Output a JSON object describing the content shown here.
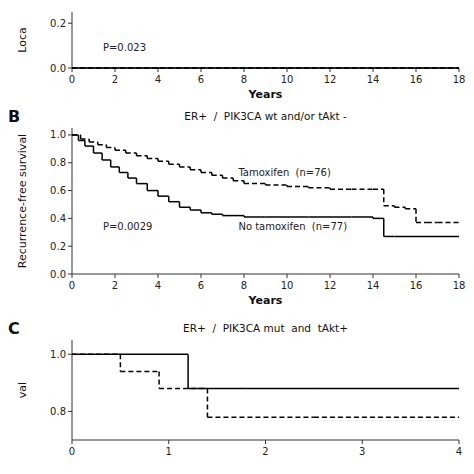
{
  "chart_data": [
    {
      "type": "line",
      "x": [
        0,
        18
      ],
      "series": [
        {
          "color": "#000000",
          "line_style": "solid",
          "values": [
            0.0,
            0.0
          ]
        },
        {
          "color": "#000000",
          "line_style": "dashed",
          "values": [
            0.0,
            0.0
          ]
        }
      ],
      "xlabel": "Years",
      "ylabel": "Loca",
      "annotations": [
        "P=0.023"
      ],
      "xlim": [
        0,
        18
      ],
      "ylim": [
        0.0,
        0.25
      ],
      "xticks": [
        0,
        2,
        4,
        6,
        8,
        10,
        12,
        14,
        16,
        18
      ],
      "yticks": [
        {
          "value": 0.0,
          "label": "0.0"
        },
        0.2
      ]
    },
    {
      "type": "step",
      "title": "ER+  /  PIK3CA wt and/or tAkt -",
      "panel_label": "B",
      "xlabel": "Years",
      "ylabel": "Recurrence-free survival",
      "annotations": [
        "P=0.0029"
      ],
      "series": [
        {
          "name": "Tamoxifen  (n=76)",
          "color": "#000000",
          "line_style": "dashed",
          "x": [
            0,
            0.4,
            0.8,
            1.2,
            1.6,
            2.0,
            2.5,
            3.0,
            3.5,
            4.0,
            4.5,
            5.0,
            5.5,
            6.0,
            6.5,
            7.0,
            7.5,
            8.0,
            9.0,
            10.0,
            11.0,
            12.0,
            13.0,
            14.0,
            14.5,
            15.0,
            15.5,
            16.0,
            16.5,
            17.0,
            18.0
          ],
          "values": [
            1.0,
            0.97,
            0.95,
            0.93,
            0.91,
            0.89,
            0.87,
            0.85,
            0.83,
            0.81,
            0.79,
            0.77,
            0.75,
            0.73,
            0.71,
            0.69,
            0.67,
            0.65,
            0.64,
            0.63,
            0.62,
            0.61,
            0.61,
            0.61,
            0.49,
            0.48,
            0.47,
            0.37,
            0.37,
            0.37,
            0.37
          ]
        },
        {
          "name": "No tamoxifen  (n=77)",
          "color": "#000000",
          "line_style": "solid",
          "x": [
            0,
            0.3,
            0.6,
            1.0,
            1.4,
            1.8,
            2.2,
            2.6,
            3.0,
            3.5,
            4.0,
            4.5,
            5.0,
            5.5,
            6.0,
            6.5,
            7.0,
            8.0,
            9.0,
            10.0,
            11.0,
            12.0,
            13.0,
            14.0,
            14.5,
            15.0,
            18.0
          ],
          "values": [
            1.0,
            0.96,
            0.92,
            0.87,
            0.82,
            0.77,
            0.73,
            0.69,
            0.65,
            0.6,
            0.56,
            0.52,
            0.48,
            0.46,
            0.44,
            0.43,
            0.42,
            0.41,
            0.41,
            0.41,
            0.41,
            0.41,
            0.41,
            0.4,
            0.27,
            0.27,
            0.27
          ]
        }
      ],
      "xlim": [
        0,
        18
      ],
      "ylim": [
        0.0,
        1.05
      ],
      "xticks": [
        0,
        2,
        4,
        6,
        8,
        10,
        12,
        14,
        16,
        18
      ],
      "yticks": [
        {
          "value": 0.0,
          "label": "0.0"
        },
        0.2,
        0.4,
        0.6,
        0.8,
        {
          "value": 1.0,
          "label": "1.0"
        }
      ]
    },
    {
      "type": "step",
      "title": "ER+  /  PIK3CA mut  and  tAkt+",
      "panel_label": "C",
      "ylabel": "val",
      "series": [
        {
          "color": "#000000",
          "line_style": "solid",
          "x": [
            0,
            0.3,
            1.2,
            1.8,
            2.5,
            4.0
          ],
          "values": [
            1.0,
            1.0,
            0.88,
            0.88,
            0.88,
            0.88
          ]
        },
        {
          "color": "#000000",
          "line_style": "dashed",
          "x": [
            0,
            0.5,
            0.9,
            1.4,
            2.5,
            4.0
          ],
          "values": [
            1.0,
            0.94,
            0.88,
            0.78,
            0.78,
            0.78
          ]
        }
      ],
      "xlim": [
        0,
        4
      ],
      "ylim": [
        0.7,
        1.05
      ],
      "xticks": [
        0,
        1,
        2,
        3,
        4
      ],
      "yticks": [
        0.8,
        {
          "value": 1.0,
          "label": "1.0"
        }
      ]
    }
  ]
}
